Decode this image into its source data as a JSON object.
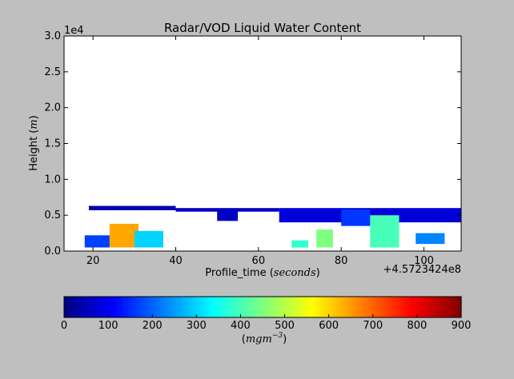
{
  "chart_data": [
    {
      "type": "heatmap",
      "title": "Radar/VOD Liquid Water Content",
      "xlabel": "Profile_time",
      "xlabel_unit": "seconds",
      "x_offset_label": "+4.5723424e8",
      "ylabel": "Height",
      "ylabel_unit": "m",
      "y_multiplier_label": "1e4",
      "xlim": [
        13,
        109
      ],
      "ylim": [
        0,
        3.0
      ],
      "x_ticks": [
        20,
        40,
        60,
        80,
        100
      ],
      "y_ticks": [
        0.0,
        0.5,
        1.0,
        1.5,
        2.0,
        2.5,
        3.0
      ],
      "grid": false,
      "regions": [
        {
          "x_start": 18,
          "x_end": 26,
          "y_bottom": 0.05,
          "y_top": 0.22,
          "value": 170
        },
        {
          "x_start": 24,
          "x_end": 31,
          "y_bottom": 0.05,
          "y_top": 0.38,
          "value": 640
        },
        {
          "x_start": 30,
          "x_end": 37,
          "y_bottom": 0.05,
          "y_top": 0.28,
          "value": 300
        },
        {
          "x_start": 19,
          "x_end": 40,
          "y_bottom": 0.57,
          "y_top": 0.63,
          "value": 40
        },
        {
          "x_start": 40,
          "x_end": 65,
          "y_bottom": 0.55,
          "y_top": 0.6,
          "value": 60
        },
        {
          "x_start": 50,
          "x_end": 55,
          "y_bottom": 0.42,
          "y_top": 0.58,
          "value": 60
        },
        {
          "x_start": 65,
          "x_end": 109,
          "y_bottom": 0.4,
          "y_top": 0.6,
          "value": 80
        },
        {
          "x_start": 80,
          "x_end": 87,
          "y_bottom": 0.35,
          "y_top": 0.58,
          "value": 160
        },
        {
          "x_start": 87,
          "x_end": 94,
          "y_bottom": 0.05,
          "y_top": 0.5,
          "value": 400
        },
        {
          "x_start": 74,
          "x_end": 78,
          "y_bottom": 0.05,
          "y_top": 0.3,
          "value": 450
        },
        {
          "x_start": 68,
          "x_end": 72,
          "y_bottom": 0.05,
          "y_top": 0.15,
          "value": 380
        },
        {
          "x_start": 98,
          "x_end": 105,
          "y_bottom": 0.1,
          "y_top": 0.25,
          "value": 230
        }
      ]
    },
    {
      "type": "colorbar",
      "label": "mgm",
      "label_exponent": "−3",
      "range": [
        0,
        900
      ],
      "ticks": [
        0,
        100,
        200,
        300,
        400,
        500,
        600,
        700,
        800,
        900
      ],
      "colormap": "jet",
      "colors": [
        "#00007f",
        "#0000ff",
        "#007fff",
        "#00ffff",
        "#7fff7f",
        "#ffff00",
        "#ff7f00",
        "#ff0000",
        "#7f0000"
      ]
    }
  ]
}
